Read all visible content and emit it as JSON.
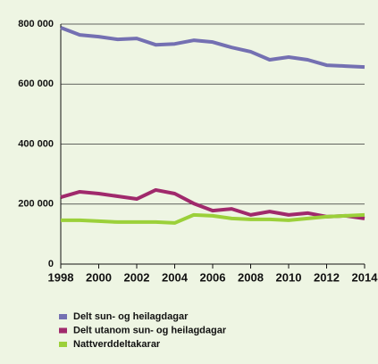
{
  "chart_data": {
    "type": "line",
    "x": [
      1998,
      1999,
      2000,
      2001,
      2002,
      2003,
      2004,
      2005,
      2006,
      2007,
      2008,
      2009,
      2010,
      2011,
      2012,
      2013,
      2014
    ],
    "series": [
      {
        "name": "Delt sun- og heilagdagar",
        "color": "#7470b2",
        "values": [
          788000,
          764000,
          758000,
          749000,
          752000,
          731000,
          734000,
          746000,
          740000,
          722000,
          708000,
          681000,
          690000,
          681000,
          663000,
          660000,
          657000
        ]
      },
      {
        "name": "Delt utanom sun- og heilagdagar",
        "color": "#a0296c",
        "values": [
          223000,
          241000,
          235000,
          226000,
          217000,
          247000,
          235000,
          202000,
          178000,
          184000,
          164000,
          175000,
          164000,
          170000,
          158000,
          161000,
          152000
        ]
      },
      {
        "name": "Nattverddeltakarar",
        "color": "#9bd03a",
        "values": [
          146000,
          146000,
          143000,
          140000,
          140000,
          140000,
          137000,
          164000,
          161000,
          152000,
          149000,
          149000,
          146000,
          152000,
          158000,
          161000,
          164000
        ]
      }
    ],
    "xlim": [
      1998,
      2014
    ],
    "xticks": [
      1998,
      2000,
      2002,
      2004,
      2006,
      2008,
      2010,
      2012,
      2014
    ],
    "ylim": [
      0,
      800000
    ],
    "yticks": [
      0,
      {
        "value": 200000,
        "label": "200 000"
      },
      {
        "value": 400000,
        "label": "400 000"
      },
      {
        "value": 600000,
        "label": "600 000"
      },
      {
        "value": 800000,
        "label": "800 000"
      }
    ],
    "grid": true,
    "legend": "bottom"
  }
}
